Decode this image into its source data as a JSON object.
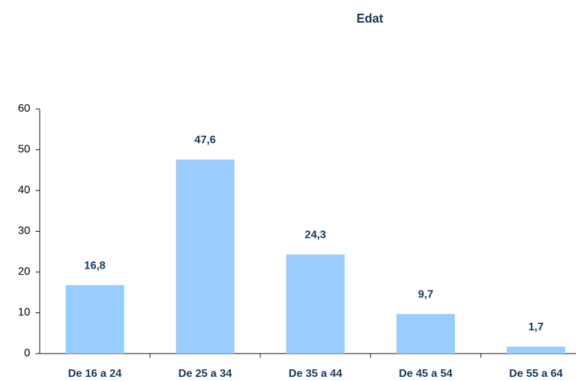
{
  "chart_data": {
    "type": "bar",
    "title": "Edat",
    "categories": [
      "De 16 a 24",
      "De 25 a 34",
      "De 35 a 44",
      "De 45 a 54",
      "De 55 a 64"
    ],
    "values": [
      16.8,
      47.6,
      24.3,
      9.7,
      1.7
    ],
    "value_labels": [
      "16,8",
      "47,6",
      "24,3",
      "9,7",
      "1,7"
    ],
    "color": "#99ccff",
    "ylim": [
      0,
      60
    ],
    "yticks": [
      0,
      10,
      20,
      30,
      40,
      50,
      60
    ],
    "grid": false
  }
}
